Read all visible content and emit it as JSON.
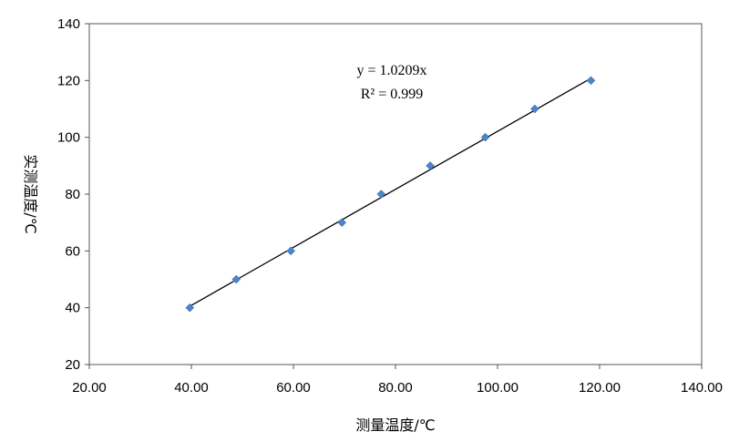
{
  "chart_data": {
    "type": "scatter",
    "xlabel": "测量温度/℃",
    "ylabel": "实测温度/℃",
    "xlim": [
      20,
      140
    ],
    "ylim": [
      20,
      140
    ],
    "x_ticks": [
      "20.00",
      "40.00",
      "60.00",
      "80.00",
      "100.00",
      "120.00",
      "140.00"
    ],
    "y_ticks": [
      "20",
      "40",
      "60",
      "80",
      "100",
      "120",
      "140"
    ],
    "grid": false,
    "legend": "none",
    "series": [
      {
        "marker": "diamond",
        "color": "#4a86c8",
        "points": [
          {
            "x": 39.7,
            "y": 40
          },
          {
            "x": 48.8,
            "y": 50
          },
          {
            "x": 59.5,
            "y": 60
          },
          {
            "x": 69.5,
            "y": 70
          },
          {
            "x": 77.2,
            "y": 80
          },
          {
            "x": 86.8,
            "y": 90
          },
          {
            "x": 97.6,
            "y": 100
          },
          {
            "x": 107.3,
            "y": 110
          },
          {
            "x": 118.3,
            "y": 120
          }
        ]
      }
    ],
    "trendline": {
      "type": "linear",
      "slope": 1.0209,
      "x_range": [
        39.7,
        118.3
      ],
      "color": "#000000"
    },
    "annotations": {
      "equation": "y = 1.0209x",
      "r_squared": "R² = 0.999"
    }
  }
}
